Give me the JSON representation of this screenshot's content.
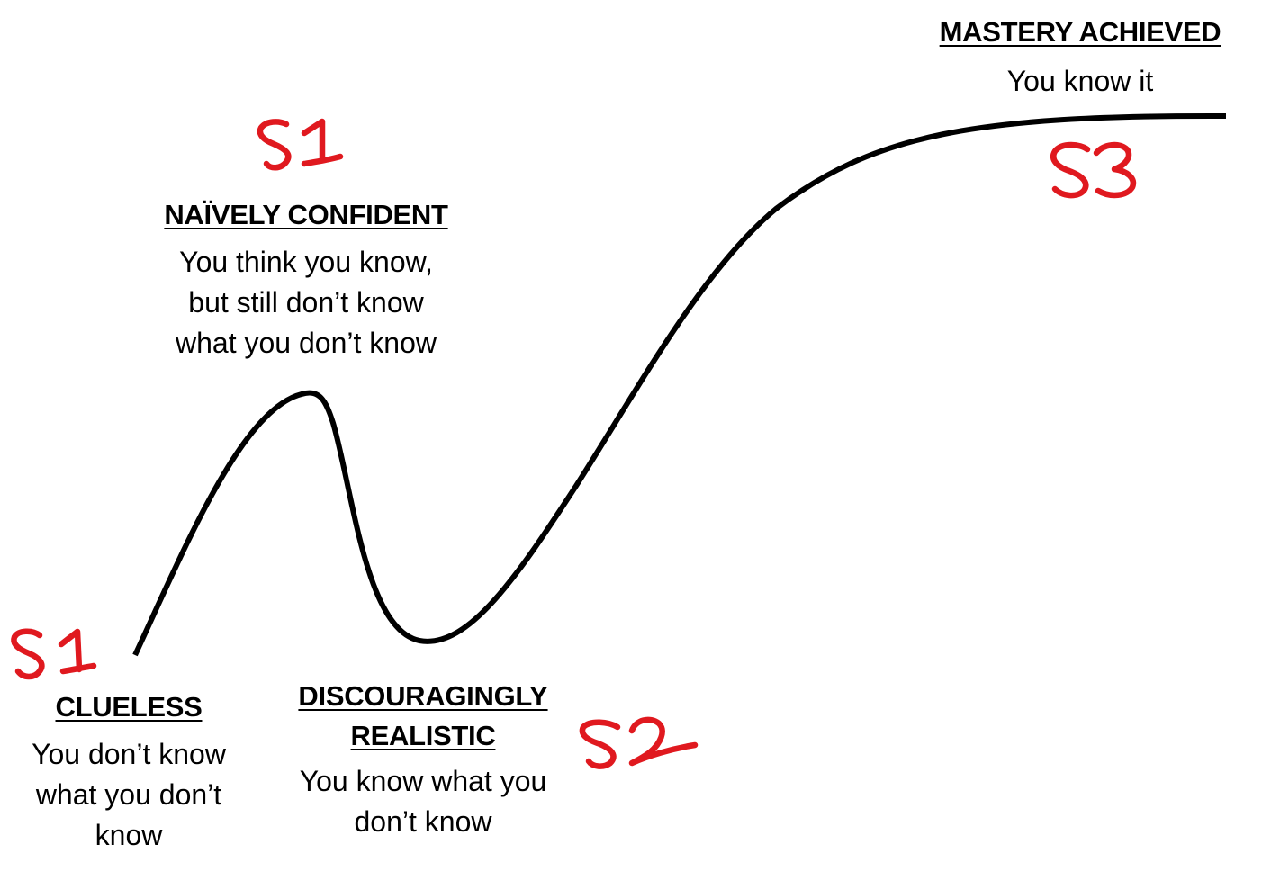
{
  "stages": {
    "clueless": {
      "title": "CLUELESS",
      "description": [
        "You don’t know",
        "what you don’t",
        "know"
      ]
    },
    "naive": {
      "title": "NAÏVELY CONFIDENT",
      "description": [
        "You think you know,",
        "but still don’t know",
        "what you don’t know"
      ]
    },
    "discouraged": {
      "title": [
        "DISCOURAGINGLY",
        "REALISTIC"
      ],
      "description": [
        "You know what you",
        "don’t know"
      ]
    },
    "mastery": {
      "title": "MASTERY ACHIEVED",
      "description": [
        "You know it"
      ]
    }
  },
  "handwritten_marks": {
    "clueless": "S1",
    "naive": "S1",
    "discouraged": "S2",
    "mastery": "S3"
  },
  "colors": {
    "curve": "#000000",
    "handwriting": "#e0191f",
    "background": "#ffffff"
  }
}
